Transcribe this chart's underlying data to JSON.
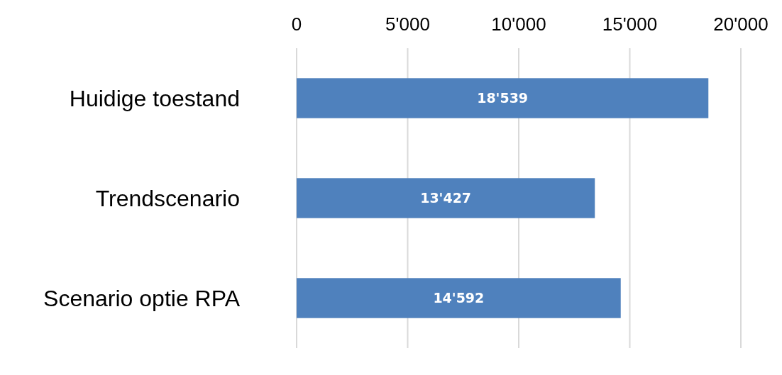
{
  "chart_data": {
    "type": "bar",
    "orientation": "horizontal",
    "categories": [
      "Huidige toestand",
      "Trendscenario",
      "Scenario optie RPA"
    ],
    "values": [
      18539,
      13427,
      14592
    ],
    "color": "#4f81bd",
    "value_labels": [
      "18'539",
      "13'427",
      "14'592"
    ],
    "xlim": [
      0,
      20000
    ],
    "xticks": [
      0,
      {
        "value": 5000,
        "label": "5'000"
      },
      {
        "value": 10000,
        "label": "10'000"
      },
      {
        "value": 15000,
        "label": "15'000"
      },
      {
        "value": 20000,
        "label": "20'000"
      }
    ],
    "grid": "x"
  }
}
